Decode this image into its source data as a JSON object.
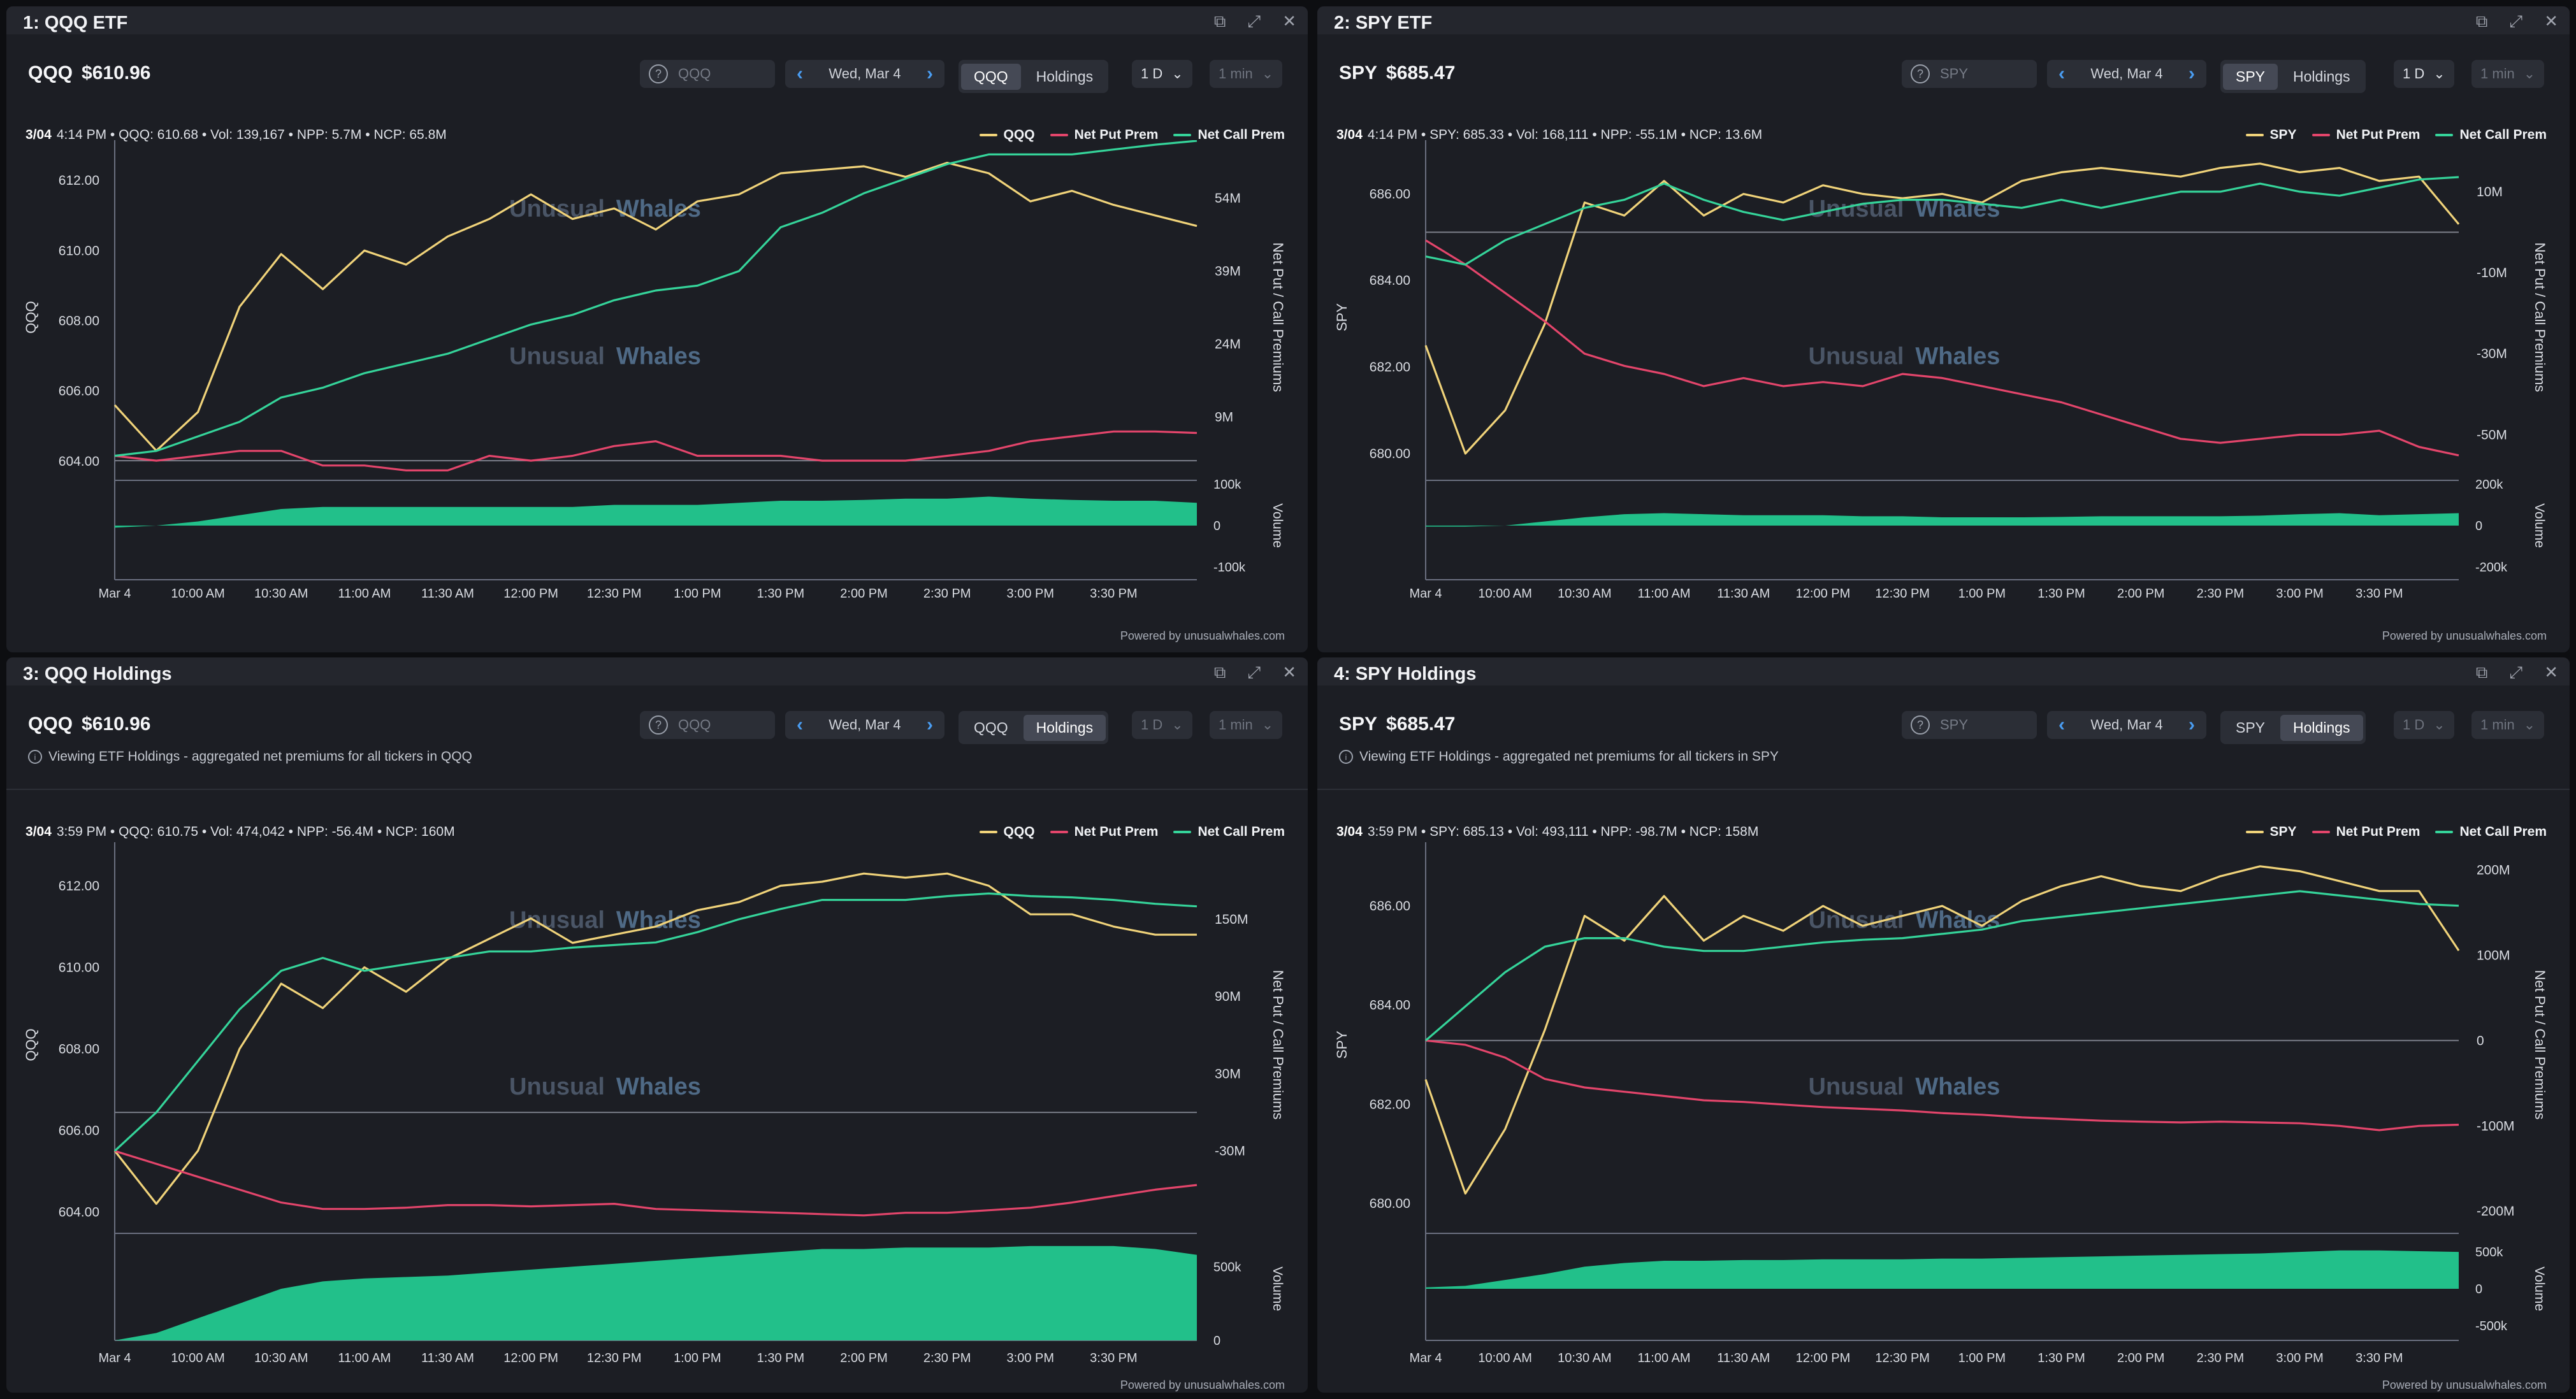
{
  "colors": {
    "price": "#f0d37a",
    "put": "#e3456b",
    "call": "#35d49a",
    "volume": "#22c08a",
    "grid": "#2d3039",
    "watermark": "#4a5566"
  },
  "watermark": {
    "word1": "Unusual",
    "word2": "Whales"
  },
  "panels": [
    {
      "title": "1: QQQ ETF",
      "ticker": "QQQ",
      "price": "$610.96",
      "search_placeholder": "QQQ",
      "date": "Wed, Mar 4",
      "seg_symbol": "QQQ",
      "seg_holdings": "Holdings",
      "seg_active": "symbol",
      "range": "1 D",
      "interval": "1 min",
      "info": "",
      "status_time": "3/04",
      "status_rest": "4:14 PM • QQQ: 610.68 • Vol: 139,167 • NPP: 5.7M • NCP: 65.8M",
      "legend": [
        "QQQ",
        "Net Put Prem",
        "Net Call Prem"
      ],
      "y_label": "QQQ",
      "y2_label": "Net Put / Call Premiums",
      "vol_label": "Volume",
      "y_ticks": [
        "612.00",
        "610.00",
        "608.00",
        "606.00",
        "604.00"
      ],
      "y2_ticks": [
        "54M",
        "39M",
        "24M",
        "9M"
      ],
      "vol_ticks": [
        "100k",
        "0",
        "-100k"
      ],
      "x_ticks": [
        "Mar 4",
        "10:00 AM",
        "10:30 AM",
        "11:00 AM",
        "11:30 AM",
        "12:00 PM",
        "12:30 PM",
        "1:00 PM",
        "1:30 PM",
        "2:00 PM",
        "2:30 PM",
        "3:00 PM",
        "3:30 PM"
      ],
      "powered": "Powered by unusualwhales.com"
    },
    {
      "title": "2: SPY ETF",
      "ticker": "SPY",
      "price": "$685.47",
      "search_placeholder": "SPY",
      "date": "Wed, Mar 4",
      "seg_symbol": "SPY",
      "seg_holdings": "Holdings",
      "seg_active": "symbol",
      "range": "1 D",
      "interval": "1 min",
      "info": "",
      "status_time": "3/04",
      "status_rest": "4:14 PM • SPY: 685.33 • Vol: 168,111 • NPP: -55.1M • NCP: 13.6M",
      "legend": [
        "SPY",
        "Net Put Prem",
        "Net Call Prem"
      ],
      "y_label": "SPY",
      "y2_label": "Net Put / Call Premiums",
      "vol_label": "Volume",
      "y_ticks": [
        "686.00",
        "684.00",
        "682.00",
        "680.00"
      ],
      "y2_ticks": [
        "10M",
        "-10M",
        "-30M",
        "-50M"
      ],
      "vol_ticks": [
        "200k",
        "0",
        "-200k"
      ],
      "x_ticks": [
        "Mar 4",
        "10:00 AM",
        "10:30 AM",
        "11:00 AM",
        "11:30 AM",
        "12:00 PM",
        "12:30 PM",
        "1:00 PM",
        "1:30 PM",
        "2:00 PM",
        "2:30 PM",
        "3:00 PM",
        "3:30 PM"
      ],
      "powered": "Powered by unusualwhales.com"
    },
    {
      "title": "3: QQQ Holdings",
      "ticker": "QQQ",
      "price": "$610.96",
      "search_placeholder": "QQQ",
      "date": "Wed, Mar 4",
      "seg_symbol": "QQQ",
      "seg_holdings": "Holdings",
      "seg_active": "holdings",
      "range": "1 D",
      "interval": "1 min",
      "info": "Viewing ETF Holdings - aggregated net premiums for all tickers in QQQ",
      "status_time": "3/04",
      "status_rest": "3:59 PM • QQQ: 610.75 • Vol: 474,042 • NPP: -56.4M • NCP: 160M",
      "legend": [
        "QQQ",
        "Net Put Prem",
        "Net Call Prem"
      ],
      "y_label": "QQQ",
      "y2_label": "Net Put / Call Premiums",
      "vol_label": "Volume",
      "y_ticks": [
        "612.00",
        "610.00",
        "608.00",
        "606.00",
        "604.00"
      ],
      "y2_ticks": [
        "150M",
        "90M",
        "30M",
        "-30M"
      ],
      "vol_ticks": [
        "500k",
        "0"
      ],
      "x_ticks": [
        "Mar 4",
        "10:00 AM",
        "10:30 AM",
        "11:00 AM",
        "11:30 AM",
        "12:00 PM",
        "12:30 PM",
        "1:00 PM",
        "1:30 PM",
        "2:00 PM",
        "2:30 PM",
        "3:00 PM",
        "3:30 PM"
      ],
      "powered": "Powered by unusualwhales.com"
    },
    {
      "title": "4: SPY Holdings",
      "ticker": "SPY",
      "price": "$685.47",
      "search_placeholder": "SPY",
      "date": "Wed, Mar 4",
      "seg_symbol": "SPY",
      "seg_holdings": "Holdings",
      "seg_active": "holdings",
      "range": "1 D",
      "interval": "1 min",
      "info": "Viewing ETF Holdings - aggregated net premiums for all tickers in SPY",
      "status_time": "3/04",
      "status_rest": "3:59 PM • SPY: 685.13 • Vol: 493,111 • NPP: -98.7M • NCP: 158M",
      "legend": [
        "SPY",
        "Net Put Prem",
        "Net Call Prem"
      ],
      "y_label": "SPY",
      "y2_label": "Net Put / Call Premiums",
      "vol_label": "Volume",
      "y_ticks": [
        "686.00",
        "684.00",
        "682.00",
        "680.00"
      ],
      "y2_ticks": [
        "200M",
        "100M",
        "0",
        "-100M",
        "-200M"
      ],
      "vol_ticks": [
        "500k",
        "0",
        "-500k"
      ],
      "x_ticks": [
        "Mar 4",
        "10:00 AM",
        "10:30 AM",
        "11:00 AM",
        "11:30 AM",
        "12:00 PM",
        "12:30 PM",
        "1:00 PM",
        "1:30 PM",
        "2:00 PM",
        "2:30 PM",
        "3:00 PM",
        "3:30 PM"
      ],
      "powered": "Powered by unusualwhales.com"
    }
  ],
  "chart_data": [
    {
      "type": "line",
      "title": "QQQ",
      "x": [
        "9:30",
        "9:45",
        "10:00",
        "10:15",
        "10:30",
        "10:45",
        "11:00",
        "11:15",
        "11:30",
        "11:45",
        "12:00",
        "12:15",
        "12:30",
        "12:45",
        "13:00",
        "13:15",
        "13:30",
        "13:45",
        "14:00",
        "14:15",
        "14:30",
        "14:45",
        "15:00",
        "15:15",
        "15:30",
        "15:45",
        "16:00"
      ],
      "series": [
        {
          "name": "QQQ",
          "axis": "price",
          "values": [
            605.6,
            604.3,
            605.4,
            608.4,
            609.9,
            608.9,
            610.0,
            609.6,
            610.4,
            610.9,
            611.6,
            610.9,
            611.2,
            610.6,
            611.4,
            611.6,
            612.2,
            612.3,
            612.4,
            612.1,
            612.5,
            612.2,
            611.4,
            611.7,
            611.3,
            611.0,
            610.7
          ]
        },
        {
          "name": "Net Put Prem",
          "axis": "prem",
          "values": [
            1,
            0,
            1,
            2,
            2,
            -1,
            -1,
            -2,
            -2,
            1,
            0,
            1,
            3,
            4,
            1,
            1,
            1,
            0,
            0,
            0,
            1,
            2,
            4,
            5,
            6,
            6,
            5.7
          ]
        },
        {
          "name": "Net Call Prem",
          "axis": "prem",
          "values": [
            1,
            2,
            5,
            8,
            13,
            15,
            18,
            20,
            22,
            25,
            28,
            30,
            33,
            35,
            36,
            39,
            48,
            51,
            55,
            58,
            61,
            63,
            63,
            63,
            64,
            65,
            65.8
          ]
        },
        {
          "name": "Volume",
          "axis": "volume",
          "values": [
            -5,
            0,
            10,
            25,
            40,
            45,
            45,
            45,
            45,
            45,
            45,
            45,
            50,
            50,
            50,
            55,
            60,
            60,
            62,
            65,
            65,
            70,
            65,
            62,
            60,
            60,
            55
          ]
        }
      ],
      "ylabel": "QQQ",
      "y2label": "Net Put / Call Premiums",
      "ylim": [
        603.6,
        612.6
      ],
      "y2lim": [
        -3,
        62
      ],
      "volume_lim": [
        -100,
        100
      ]
    },
    {
      "type": "line",
      "title": "SPY",
      "x": [
        "9:30",
        "9:45",
        "10:00",
        "10:15",
        "10:30",
        "10:45",
        "11:00",
        "11:15",
        "11:30",
        "11:45",
        "12:00",
        "12:15",
        "12:30",
        "12:45",
        "13:00",
        "13:15",
        "13:30",
        "13:45",
        "14:00",
        "14:15",
        "14:30",
        "14:45",
        "15:00",
        "15:15",
        "15:30",
        "15:45",
        "16:00"
      ],
      "series": [
        {
          "name": "SPY",
          "axis": "price",
          "values": [
            682.5,
            680.0,
            681.0,
            683.0,
            685.8,
            685.5,
            686.3,
            685.5,
            686.0,
            685.8,
            686.2,
            686.0,
            685.9,
            686.0,
            685.8,
            686.3,
            686.5,
            686.6,
            686.5,
            686.4,
            686.6,
            686.7,
            686.5,
            686.6,
            686.3,
            686.4,
            685.3
          ]
        },
        {
          "name": "Net Put Prem",
          "axis": "prem",
          "values": [
            -2,
            -8,
            -15,
            -22,
            -30,
            -33,
            -35,
            -38,
            -36,
            -38,
            -37,
            -38,
            -35,
            -36,
            -38,
            -40,
            -42,
            -45,
            -48,
            -51,
            -52,
            -51,
            -50,
            -50,
            -49,
            -53,
            -55.1
          ]
        },
        {
          "name": "Net Call Prem",
          "axis": "prem",
          "values": [
            -6,
            -8,
            -2,
            2,
            6,
            8,
            12,
            8,
            5,
            3,
            5,
            7,
            8,
            8,
            7,
            6,
            8,
            6,
            8,
            10,
            10,
            12,
            10,
            9,
            11,
            13,
            13.6
          ]
        },
        {
          "name": "Volume",
          "axis": "volume",
          "values": [
            -5,
            -5,
            0,
            20,
            40,
            55,
            60,
            55,
            50,
            50,
            50,
            45,
            45,
            40,
            40,
            40,
            42,
            45,
            45,
            45,
            45,
            48,
            55,
            60,
            50,
            55,
            60
          ]
        }
      ],
      "ylabel": "SPY",
      "y2label": "Net Put / Call Premiums",
      "ylim": [
        679.5,
        686.8
      ],
      "y2lim": [
        -60,
        18
      ],
      "volume_lim": [
        -200,
        200
      ]
    },
    {
      "type": "line",
      "title": "QQQ",
      "x": [
        "9:30",
        "9:45",
        "10:00",
        "10:15",
        "10:30",
        "10:45",
        "11:00",
        "11:15",
        "11:30",
        "11:45",
        "12:00",
        "12:15",
        "12:30",
        "12:45",
        "13:00",
        "13:15",
        "13:30",
        "13:45",
        "14:00",
        "14:15",
        "14:30",
        "14:45",
        "15:00",
        "15:15",
        "15:30",
        "15:45",
        "16:00"
      ],
      "series": [
        {
          "name": "QQQ",
          "axis": "price",
          "values": [
            605.5,
            604.2,
            605.5,
            608.0,
            609.6,
            609.0,
            610.0,
            609.4,
            610.2,
            610.7,
            611.2,
            610.6,
            610.8,
            611.0,
            611.4,
            611.6,
            612.0,
            612.1,
            612.3,
            612.2,
            612.3,
            612.0,
            611.3,
            611.3,
            611.0,
            610.8,
            610.8
          ]
        },
        {
          "name": "Net Put Prem",
          "axis": "prem",
          "values": [
            -30,
            -40,
            -50,
            -60,
            -70,
            -75,
            -75,
            -74,
            -72,
            -72,
            -73,
            -72,
            -71,
            -75,
            -76,
            -77,
            -78,
            -79,
            -80,
            -78,
            -78,
            -76,
            -74,
            -70,
            -65,
            -60,
            -56.4
          ]
        },
        {
          "name": "Net Call Prem",
          "axis": "prem",
          "values": [
            -30,
            0,
            40,
            80,
            110,
            120,
            110,
            115,
            120,
            125,
            125,
            128,
            130,
            132,
            140,
            150,
            158,
            165,
            165,
            165,
            168,
            170,
            168,
            167,
            165,
            162,
            160
          ]
        },
        {
          "name": "Volume",
          "axis": "volume",
          "values": [
            0,
            50,
            150,
            250,
            350,
            400,
            420,
            430,
            440,
            460,
            480,
            500,
            520,
            540,
            560,
            580,
            600,
            620,
            620,
            630,
            630,
            630,
            640,
            640,
            640,
            620,
            580
          ]
        }
      ],
      "ylabel": "QQQ",
      "y2label": "Net Put / Call Premiums",
      "ylim": [
        603.6,
        612.6
      ],
      "y2lim": [
        -90,
        195
      ],
      "volume_lim": [
        0,
        700
      ]
    },
    {
      "type": "line",
      "title": "SPY",
      "x": [
        "9:30",
        "9:45",
        "10:00",
        "10:15",
        "10:30",
        "10:45",
        "11:00",
        "11:15",
        "11:30",
        "11:45",
        "12:00",
        "12:15",
        "12:30",
        "12:45",
        "13:00",
        "13:15",
        "13:30",
        "13:45",
        "14:00",
        "14:15",
        "14:30",
        "14:45",
        "15:00",
        "15:15",
        "15:30",
        "15:45",
        "16:00"
      ],
      "series": [
        {
          "name": "SPY",
          "axis": "price",
          "values": [
            682.5,
            680.2,
            681.5,
            683.5,
            685.8,
            685.3,
            686.2,
            685.3,
            685.8,
            685.5,
            686.0,
            685.6,
            685.8,
            686.0,
            685.6,
            686.1,
            686.4,
            686.6,
            686.4,
            686.3,
            686.6,
            686.8,
            686.7,
            686.5,
            686.3,
            686.3,
            685.1
          ]
        },
        {
          "name": "Net Put Prem",
          "axis": "prem",
          "values": [
            0,
            -5,
            -20,
            -45,
            -55,
            -60,
            -65,
            -70,
            -72,
            -75,
            -78,
            -80,
            -82,
            -85,
            -87,
            -90,
            -92,
            -94,
            -95,
            -96,
            -95,
            -96,
            -97,
            -100,
            -105,
            -100,
            -98.7
          ]
        },
        {
          "name": "Net Call Prem",
          "axis": "prem",
          "values": [
            0,
            40,
            80,
            110,
            120,
            120,
            110,
            105,
            105,
            110,
            115,
            118,
            120,
            125,
            130,
            140,
            145,
            150,
            155,
            160,
            165,
            170,
            175,
            170,
            165,
            160,
            158
          ]
        },
        {
          "name": "Volume",
          "axis": "volume",
          "values": [
            20,
            40,
            120,
            200,
            300,
            350,
            380,
            380,
            390,
            390,
            400,
            400,
            400,
            410,
            410,
            420,
            430,
            440,
            450,
            460,
            470,
            480,
            500,
            520,
            520,
            510,
            500
          ]
        }
      ],
      "ylabel": "SPY",
      "y2label": "Net Put / Call Premiums",
      "ylim": [
        679.5,
        686.9
      ],
      "y2lim": [
        -220,
        210
      ],
      "volume_lim": [
        -700,
        700
      ]
    }
  ]
}
